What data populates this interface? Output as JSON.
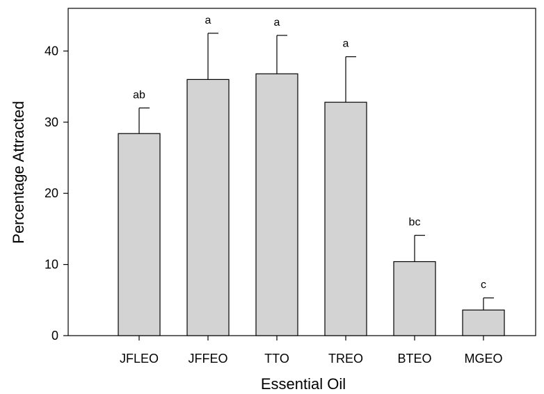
{
  "chart_data": {
    "type": "bar",
    "title": "",
    "xlabel": "Essential Oil",
    "ylabel": "Percentage Attracted",
    "categories": [
      "JFLEO",
      "JFFEO",
      "TTO",
      "TREO",
      "BTEO",
      "MGEO"
    ],
    "values": [
      28.4,
      36.0,
      36.8,
      32.8,
      10.4,
      3.6
    ],
    "error_upper": [
      3.6,
      6.5,
      5.4,
      6.4,
      3.7,
      1.7
    ],
    "significance_letters": [
      "ab",
      "a",
      "a",
      "a",
      "bc",
      "c"
    ],
    "ylim": [
      0,
      46
    ],
    "yticks": [
      0,
      10,
      20,
      30,
      40
    ],
    "grid": false,
    "bar_fill": "#d3d3d3",
    "bar_stroke": "#000000"
  }
}
